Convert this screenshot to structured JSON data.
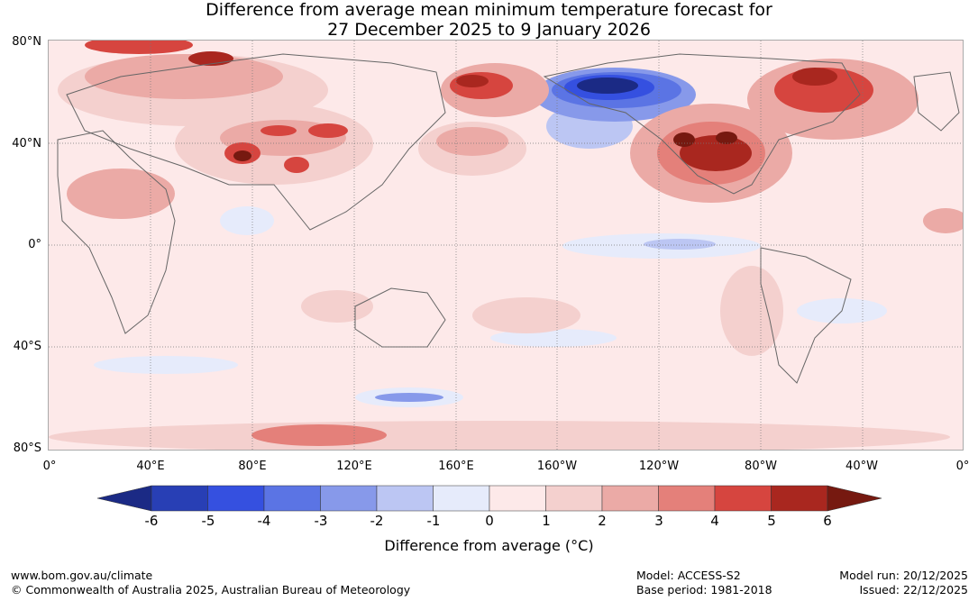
{
  "title": {
    "line1": "Difference from average mean minimum temperature forecast for",
    "line2": "27 December 2025 to 9 January 2026"
  },
  "axes": {
    "lat_labels": [
      "80°N",
      "40°N",
      "0°",
      "40°S",
      "80°S"
    ],
    "lon_labels": [
      "0°",
      "40°E",
      "80°E",
      "120°E",
      "160°E",
      "160°W",
      "120°W",
      "80°W",
      "40°W",
      "0°"
    ]
  },
  "colorbar": {
    "ticks": [
      "-6",
      "-5",
      "-4",
      "-3",
      "-2",
      "-1",
      "0",
      "1",
      "2",
      "3",
      "4",
      "5",
      "6"
    ],
    "label": "Difference from average (°C)",
    "colors": {
      "below_min": "#1b2a85",
      "c_m6_m5": "#283fb5",
      "c_m5_m4": "#3550e0",
      "c_m4_m3": "#5b74e4",
      "c_m3_m2": "#8799ea",
      "c_m2_m1": "#bcc6f3",
      "c_m1_0": "#e6ebfb",
      "c_0_1": "#fde9e9",
      "c_1_2": "#f4d0ce",
      "c_2_3": "#ebaaa6",
      "c_3_4": "#e4807a",
      "c_4_5": "#d6453f",
      "c_5_6": "#a9271f",
      "above_max": "#761910"
    }
  },
  "footer": {
    "website": "www.bom.gov.au/climate",
    "copyright": "© Commonwealth of Australia 2025, Australian Bureau of Meteorology",
    "model": "Model: ACCESS-S2",
    "base_period": "Base period: 1981-2018",
    "model_run": "Model run: 20/12/2025",
    "issued": "Issued: 22/12/2025"
  }
}
